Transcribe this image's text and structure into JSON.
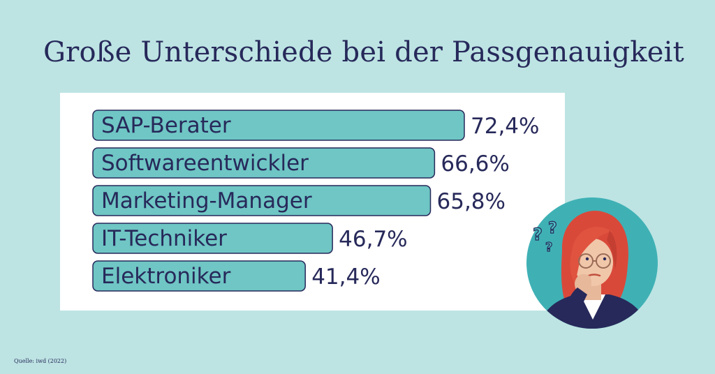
{
  "title": "Große Unterschiede bei der Passgenauigkeit",
  "source": "Quelle: iwd (2022)",
  "colors": {
    "background": "#bde4e3",
    "bar_fill": "#6fc6c4",
    "bar_stroke": "#27295a",
    "text": "#27295a"
  },
  "chart_data": {
    "type": "bar",
    "orientation": "horizontal",
    "categories": [
      "SAP-Berater",
      "Softwareentwickler",
      "Marketing-Manager",
      "IT-Techniker",
      "Elektroniker"
    ],
    "values": [
      72.4,
      66.6,
      65.8,
      46.7,
      41.4
    ],
    "value_labels": [
      "72,4%",
      "66,6%",
      "65,8%",
      "46,7%",
      "41,4%"
    ],
    "unit": "%",
    "xlim": [
      0,
      72.4
    ],
    "grid": false,
    "legend": false
  },
  "illustration": {
    "icon": "thinking-woman-icon",
    "marks": "question-marks-icon"
  }
}
